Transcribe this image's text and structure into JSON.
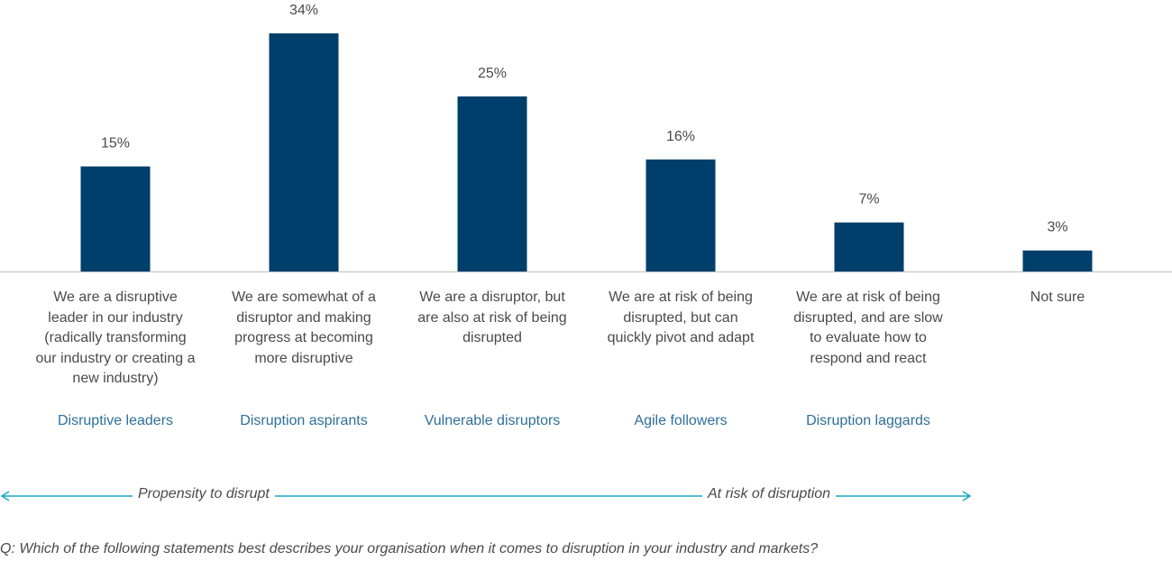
{
  "colors": {
    "bar": "#003f6b",
    "segment_label": "#2e6f99",
    "arrow": "#1aa7c4",
    "text": "#4a4a4a",
    "axis": "#bfbfbf"
  },
  "chart_data": {
    "type": "bar",
    "categories": [
      "We are a disruptive leader in our industry (radically transforming our industry or creating a new industry)",
      "We are somewhat of a disruptor and making progress at becoming more disruptive",
      "We are a disruptor, but are also at risk of being disrupted",
      "We are at risk of being disrupted, but can quickly pivot and adapt",
      "We are at risk of being disrupted, and are slow to evaluate how to respond and react",
      "Not sure"
    ],
    "values": [
      15,
      34,
      25,
      16,
      7,
      3
    ],
    "value_labels": [
      "15%",
      "34%",
      "25%",
      "16%",
      "7%",
      "3%"
    ],
    "segment_labels": [
      "Disruptive leaders",
      "Disruption aspirants",
      "Vulnerable disruptors",
      "Agile followers",
      "Disruption laggards",
      ""
    ],
    "ylim": [
      0,
      34
    ],
    "grid": false,
    "legend": "none"
  },
  "arrows": {
    "left_label": "Propensity to disrupt",
    "right_label": "At risk of disruption"
  },
  "question": "Q: Which of the following statements best describes your organisation when it comes to disruption in your industry and markets?"
}
